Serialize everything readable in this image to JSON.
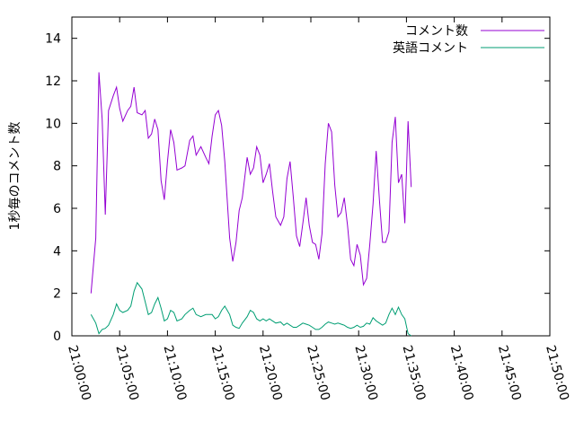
{
  "chart_data": {
    "type": "line",
    "ylabel": "1秒毎のコメント数",
    "xlabel": "",
    "ylim": [
      0,
      15
    ],
    "yticks": [
      0,
      2,
      4,
      6,
      8,
      10,
      12,
      14
    ],
    "xlim": [
      "21:00:00",
      "21:50:00"
    ],
    "xticks": [
      "21:00:00",
      "21:05:00",
      "21:10:00",
      "21:15:00",
      "21:20:00",
      "21:25:00",
      "21:30:00",
      "21:35:00",
      "21:40:00",
      "21:45:00",
      "21:50:00"
    ],
    "legend_position": "top-right",
    "grid": false,
    "series": [
      {
        "name": "コメント数",
        "color": "#9400d3",
        "points": [
          [
            "21:02:00",
            2.0
          ],
          [
            "21:02:30",
            4.6
          ],
          [
            "21:02:50",
            12.4
          ],
          [
            "21:03:10",
            10.2
          ],
          [
            "21:03:30",
            5.7
          ],
          [
            "21:03:50",
            10.6
          ],
          [
            "21:04:20",
            11.3
          ],
          [
            "21:04:40",
            11.7
          ],
          [
            "21:05:00",
            10.7
          ],
          [
            "21:05:20",
            10.1
          ],
          [
            "21:05:50",
            10.6
          ],
          [
            "21:06:10",
            10.8
          ],
          [
            "21:06:30",
            11.7
          ],
          [
            "21:06:50",
            10.5
          ],
          [
            "21:07:20",
            10.4
          ],
          [
            "21:07:40",
            10.6
          ],
          [
            "21:08:00",
            9.3
          ],
          [
            "21:08:20",
            9.5
          ],
          [
            "21:08:40",
            10.2
          ],
          [
            "21:09:00",
            9.7
          ],
          [
            "21:09:20",
            7.3
          ],
          [
            "21:09:40",
            6.4
          ],
          [
            "21:10:00",
            8.2
          ],
          [
            "21:10:20",
            9.7
          ],
          [
            "21:10:40",
            9.1
          ],
          [
            "21:11:00",
            7.8
          ],
          [
            "21:11:30",
            7.9
          ],
          [
            "21:11:50",
            8.0
          ],
          [
            "21:12:20",
            9.2
          ],
          [
            "21:12:40",
            9.4
          ],
          [
            "21:13:00",
            8.5
          ],
          [
            "21:13:30",
            8.9
          ],
          [
            "21:14:00",
            8.4
          ],
          [
            "21:14:20",
            8.1
          ],
          [
            "21:14:40",
            9.4
          ],
          [
            "21:15:00",
            10.4
          ],
          [
            "21:15:20",
            10.6
          ],
          [
            "21:15:40",
            9.9
          ],
          [
            "21:16:00",
            8.2
          ],
          [
            "21:16:30",
            4.6
          ],
          [
            "21:16:50",
            3.5
          ],
          [
            "21:17:10",
            4.4
          ],
          [
            "21:17:30",
            5.9
          ],
          [
            "21:17:50",
            6.5
          ],
          [
            "21:18:20",
            8.4
          ],
          [
            "21:18:40",
            7.6
          ],
          [
            "21:19:00",
            7.9
          ],
          [
            "21:19:20",
            8.9
          ],
          [
            "21:19:40",
            8.5
          ],
          [
            "21:20:00",
            7.2
          ],
          [
            "21:20:20",
            7.6
          ],
          [
            "21:20:40",
            8.1
          ],
          [
            "21:21:00",
            6.8
          ],
          [
            "21:21:20",
            5.6
          ],
          [
            "21:21:50",
            5.2
          ],
          [
            "21:22:10",
            5.6
          ],
          [
            "21:22:30",
            7.4
          ],
          [
            "21:22:50",
            8.2
          ],
          [
            "21:23:10",
            6.5
          ],
          [
            "21:23:30",
            4.7
          ],
          [
            "21:23:50",
            4.2
          ],
          [
            "21:24:10",
            5.3
          ],
          [
            "21:24:30",
            6.5
          ],
          [
            "21:24:50",
            5.2
          ],
          [
            "21:25:10",
            4.4
          ],
          [
            "21:25:30",
            4.3
          ],
          [
            "21:25:50",
            3.6
          ],
          [
            "21:26:10",
            4.8
          ],
          [
            "21:26:30",
            8.1
          ],
          [
            "21:26:50",
            10.0
          ],
          [
            "21:27:10",
            9.6
          ],
          [
            "21:27:30",
            7.1
          ],
          [
            "21:27:50",
            5.6
          ],
          [
            "21:28:10",
            5.8
          ],
          [
            "21:28:30",
            6.5
          ],
          [
            "21:28:50",
            5.2
          ],
          [
            "21:29:10",
            3.6
          ],
          [
            "21:29:30",
            3.3
          ],
          [
            "21:29:50",
            4.3
          ],
          [
            "21:30:10",
            3.8
          ],
          [
            "21:30:30",
            2.4
          ],
          [
            "21:30:50",
            2.7
          ],
          [
            "21:31:10",
            4.3
          ],
          [
            "21:31:30",
            6.2
          ],
          [
            "21:31:50",
            8.7
          ],
          [
            "21:32:10",
            6.4
          ],
          [
            "21:32:30",
            4.4
          ],
          [
            "21:32:50",
            4.4
          ],
          [
            "21:33:10",
            4.9
          ],
          [
            "21:33:30",
            9.1
          ],
          [
            "21:33:50",
            10.3
          ],
          [
            "21:34:10",
            7.2
          ],
          [
            "21:34:30",
            7.6
          ],
          [
            "21:34:50",
            5.3
          ],
          [
            "21:35:10",
            10.1
          ],
          [
            "21:35:30",
            7.0
          ]
        ]
      },
      {
        "name": "英語コメント",
        "color": "#009e73",
        "points": [
          [
            "21:02:00",
            1.0
          ],
          [
            "21:02:30",
            0.6
          ],
          [
            "21:02:50",
            0.1
          ],
          [
            "21:03:10",
            0.3
          ],
          [
            "21:03:30",
            0.35
          ],
          [
            "21:03:50",
            0.5
          ],
          [
            "21:04:20",
            1.0
          ],
          [
            "21:04:40",
            1.5
          ],
          [
            "21:05:00",
            1.2
          ],
          [
            "21:05:20",
            1.1
          ],
          [
            "21:05:50",
            1.2
          ],
          [
            "21:06:10",
            1.4
          ],
          [
            "21:06:30",
            2.1
          ],
          [
            "21:06:50",
            2.5
          ],
          [
            "21:07:20",
            2.2
          ],
          [
            "21:07:40",
            1.6
          ],
          [
            "21:08:00",
            1.0
          ],
          [
            "21:08:20",
            1.1
          ],
          [
            "21:08:40",
            1.5
          ],
          [
            "21:09:00",
            1.8
          ],
          [
            "21:09:20",
            1.3
          ],
          [
            "21:09:40",
            0.7
          ],
          [
            "21:10:00",
            0.8
          ],
          [
            "21:10:20",
            1.2
          ],
          [
            "21:10:40",
            1.1
          ],
          [
            "21:11:00",
            0.7
          ],
          [
            "21:11:30",
            0.8
          ],
          [
            "21:11:50",
            1.0
          ],
          [
            "21:12:20",
            1.2
          ],
          [
            "21:12:40",
            1.3
          ],
          [
            "21:13:00",
            1.0
          ],
          [
            "21:13:30",
            0.9
          ],
          [
            "21:14:00",
            1.0
          ],
          [
            "21:14:20",
            1.0
          ],
          [
            "21:14:40",
            1.0
          ],
          [
            "21:15:00",
            0.8
          ],
          [
            "21:15:20",
            0.9
          ],
          [
            "21:15:40",
            1.2
          ],
          [
            "21:16:00",
            1.4
          ],
          [
            "21:16:30",
            1.0
          ],
          [
            "21:16:50",
            0.5
          ],
          [
            "21:17:10",
            0.4
          ],
          [
            "21:17:30",
            0.35
          ],
          [
            "21:17:50",
            0.6
          ],
          [
            "21:18:20",
            0.9
          ],
          [
            "21:18:40",
            1.2
          ],
          [
            "21:19:00",
            1.1
          ],
          [
            "21:19:20",
            0.8
          ],
          [
            "21:19:40",
            0.7
          ],
          [
            "21:20:00",
            0.8
          ],
          [
            "21:20:20",
            0.7
          ],
          [
            "21:20:40",
            0.8
          ],
          [
            "21:21:00",
            0.7
          ],
          [
            "21:21:20",
            0.6
          ],
          [
            "21:21:50",
            0.65
          ],
          [
            "21:22:10",
            0.5
          ],
          [
            "21:22:30",
            0.6
          ],
          [
            "21:22:50",
            0.5
          ],
          [
            "21:23:10",
            0.4
          ],
          [
            "21:23:30",
            0.4
          ],
          [
            "21:23:50",
            0.5
          ],
          [
            "21:24:10",
            0.6
          ],
          [
            "21:24:30",
            0.55
          ],
          [
            "21:24:50",
            0.5
          ],
          [
            "21:25:10",
            0.4
          ],
          [
            "21:25:30",
            0.3
          ],
          [
            "21:25:50",
            0.3
          ],
          [
            "21:26:10",
            0.4
          ],
          [
            "21:26:30",
            0.55
          ],
          [
            "21:26:50",
            0.65
          ],
          [
            "21:27:10",
            0.6
          ],
          [
            "21:27:30",
            0.55
          ],
          [
            "21:27:50",
            0.6
          ],
          [
            "21:28:10",
            0.55
          ],
          [
            "21:28:30",
            0.5
          ],
          [
            "21:28:50",
            0.4
          ],
          [
            "21:29:10",
            0.35
          ],
          [
            "21:29:30",
            0.4
          ],
          [
            "21:29:50",
            0.5
          ],
          [
            "21:30:10",
            0.4
          ],
          [
            "21:30:30",
            0.45
          ],
          [
            "21:30:50",
            0.6
          ],
          [
            "21:31:10",
            0.55
          ],
          [
            "21:31:30",
            0.85
          ],
          [
            "21:31:50",
            0.7
          ],
          [
            "21:32:10",
            0.6
          ],
          [
            "21:32:30",
            0.5
          ],
          [
            "21:32:50",
            0.6
          ],
          [
            "21:33:10",
            1.0
          ],
          [
            "21:33:30",
            1.3
          ],
          [
            "21:33:50",
            1.0
          ],
          [
            "21:34:10",
            1.35
          ],
          [
            "21:34:30",
            1.0
          ],
          [
            "21:34:50",
            0.8
          ],
          [
            "21:35:10",
            0.1
          ],
          [
            "21:35:30",
            0.0
          ]
        ]
      }
    ]
  }
}
